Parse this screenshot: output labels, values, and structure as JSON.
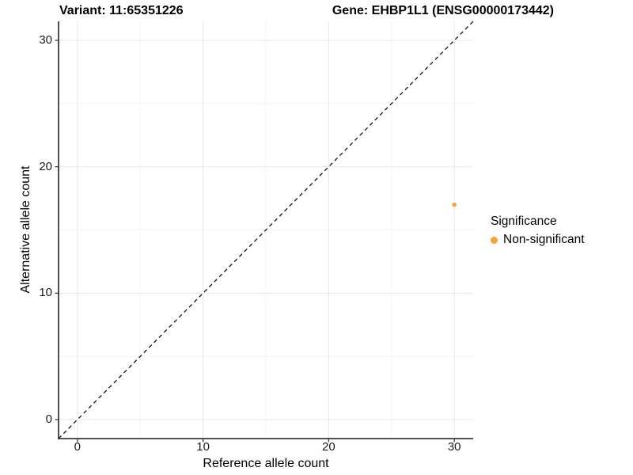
{
  "title": {
    "variant": "Variant: 11:65351226",
    "gene": "Gene: EHBP1L1 (ENSG00000173442)"
  },
  "chart_data": {
    "type": "scatter",
    "xlabel": "Reference allele count",
    "ylabel": "Alternative allele count",
    "xlim": [
      -1.5,
      31.5
    ],
    "ylim": [
      -1.5,
      31.5
    ],
    "xticks": [
      0,
      10,
      20,
      30
    ],
    "yticks": [
      0,
      10,
      20,
      30
    ],
    "xticks_minor": [
      5,
      15,
      25
    ],
    "yticks_minor": [
      5,
      15,
      25
    ],
    "grid": true,
    "identity_line": {
      "style": "dashed",
      "equation": "y = x",
      "from": [
        -1.5,
        -1.5
      ],
      "to": [
        31.5,
        31.5
      ],
      "color": "#111111"
    },
    "series": [
      {
        "name": "Non-significant",
        "color": "#F8A13C",
        "points": [
          {
            "x": 30,
            "y": 17
          }
        ]
      }
    ],
    "legend": {
      "title": "Significance",
      "position": "right",
      "items": [
        {
          "label": "Non-significant",
          "color": "#F8A13C"
        }
      ]
    }
  },
  "colors": {
    "background": "#ffffff",
    "grid_major": "#e8e8e8",
    "grid_minor": "#f4f4f4",
    "axis_line": "#3c3c3c",
    "tick_mark": "#3c3c3c",
    "text": "#000000",
    "point": "#F8A13C"
  }
}
